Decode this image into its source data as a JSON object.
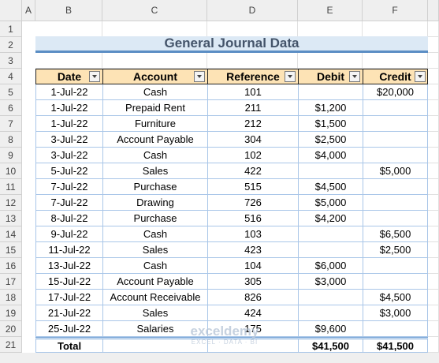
{
  "column_headers": [
    "A",
    "B",
    "C",
    "D",
    "E",
    "F"
  ],
  "row_headers": [
    1,
    2,
    3,
    4,
    5,
    6,
    7,
    8,
    9,
    10,
    11,
    12,
    13,
    14,
    15,
    16,
    17,
    18,
    19,
    20,
    21
  ],
  "title": "General Journal Data",
  "table": {
    "header": [
      "Date",
      "Account",
      "Reference",
      "Debit",
      "Credit"
    ],
    "rows": [
      [
        "1-Jul-22",
        "Cash",
        "101",
        null,
        "$20,000"
      ],
      [
        "1-Jul-22",
        "Prepaid Rent",
        "211",
        "$1,200",
        null
      ],
      [
        "1-Jul-22",
        "Furniture",
        "212",
        "$1,500",
        null
      ],
      [
        "3-Jul-22",
        "Account Payable",
        "304",
        "$2,500",
        null
      ],
      [
        "3-Jul-22",
        "Cash",
        "102",
        "$4,000",
        null
      ],
      [
        "5-Jul-22",
        "Sales",
        "422",
        null,
        "$5,000"
      ],
      [
        "7-Jul-22",
        "Purchase",
        "515",
        "$4,500",
        null
      ],
      [
        "7-Jul-22",
        "Drawing",
        "726",
        "$5,000",
        null
      ],
      [
        "8-Jul-22",
        "Purchase",
        "516",
        "$4,200",
        null
      ],
      [
        "9-Jul-22",
        "Cash",
        "103",
        null,
        "$6,500"
      ],
      [
        "11-Jul-22",
        "Sales",
        "423",
        null,
        "$2,500"
      ],
      [
        "13-Jul-22",
        "Cash",
        "104",
        "$6,000",
        null
      ],
      [
        "15-Jul-22",
        "Account Payable",
        "305",
        "$3,000",
        null
      ],
      [
        "17-Jul-22",
        "Account Receivable",
        "826",
        null,
        "$4,500"
      ],
      [
        "21-Jul-22",
        "Sales",
        "424",
        null,
        "$3,000"
      ],
      [
        "25-Jul-22",
        "Salaries",
        "175",
        "$9,600",
        null
      ]
    ],
    "total": {
      "label": "Total",
      "debit": "$41,500",
      "credit": "$41,500"
    }
  },
  "watermark": {
    "brand": "exceldemy",
    "tagline": "EXCEL · DATA · BI"
  }
}
